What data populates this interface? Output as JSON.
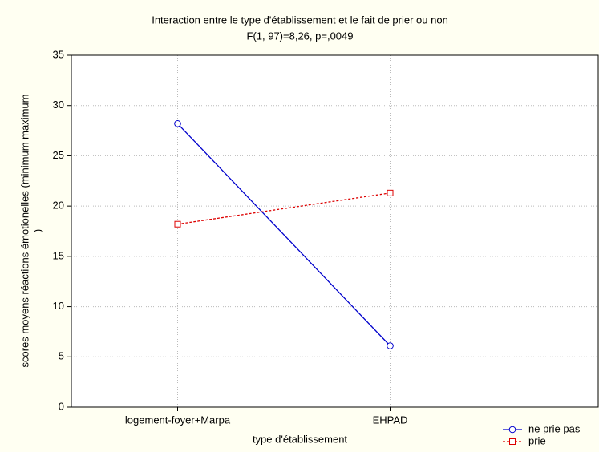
{
  "chart_data": {
    "type": "line",
    "title": "Interaction entre le type d'établissement et le fait de prier ou non",
    "subtitle": "F(1, 97)=8,26, p=,0049",
    "xlabel": "type d'établissement",
    "ylabel": [
      "scores moyens réactions émotionelles (minimum  maximum",
      ")"
    ],
    "categories": [
      "logement-foyer+Marpa",
      "EHPAD"
    ],
    "series": [
      {
        "name": "ne prie pas",
        "color": "#0000cc",
        "marker": "circle",
        "dash": false,
        "values": [
          28.2,
          6.1
        ]
      },
      {
        "name": "prie",
        "color": "#dd0000",
        "marker": "square",
        "dash": true,
        "values": [
          18.2,
          21.3
        ]
      }
    ],
    "ylim": [
      0,
      35
    ],
    "yticks": [
      0,
      5,
      10,
      15,
      20,
      25,
      30,
      35
    ],
    "grid": true,
    "legend": "bottom-right"
  }
}
